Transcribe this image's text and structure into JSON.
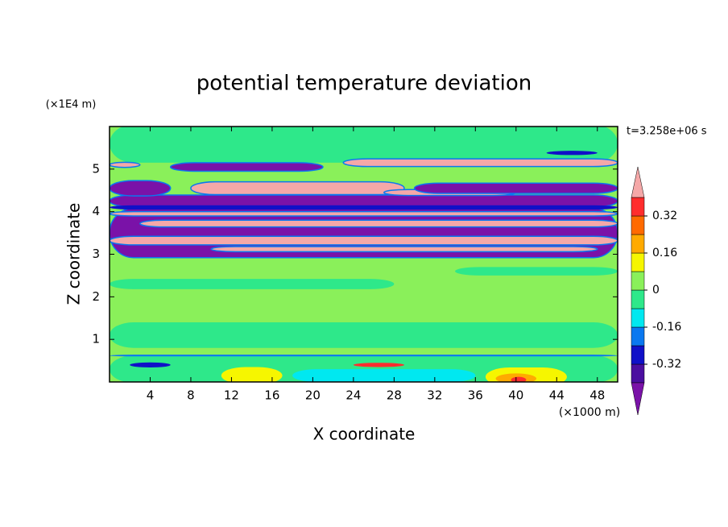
{
  "chart_data": {
    "type": "contour",
    "title": "potential temperature deviation",
    "x_label": "X coordinate",
    "y_label": "Z coordinate",
    "x_unit": "(×1000 m)",
    "y_unit": "(×1E4 m)",
    "time_label": "t=3.258e+06 s",
    "xlim": [
      0,
      50
    ],
    "xticks": [
      4,
      8,
      12,
      16,
      20,
      24,
      28,
      32,
      36,
      40,
      44,
      48
    ],
    "ylim": [
      0,
      6
    ],
    "yticks": [
      1,
      2,
      3,
      4,
      5
    ],
    "colorbar": {
      "levels": [
        -0.4,
        -0.32,
        -0.24,
        -0.16,
        -0.08,
        0,
        0.08,
        0.16,
        0.24,
        0.32,
        0.4
      ],
      "colors": [
        "#7a12a8",
        "#4b0ea0",
        "#1010c8",
        "#0a78f0",
        "#00e8f0",
        "#2ee88a",
        "#8af05a",
        "#f6f600",
        "#ffaa00",
        "#ff6a00",
        "#ff2d2d",
        "#f5a8a8"
      ],
      "ticks": [
        -0.32,
        -0.16,
        0,
        0.16,
        0.32
      ]
    }
  }
}
